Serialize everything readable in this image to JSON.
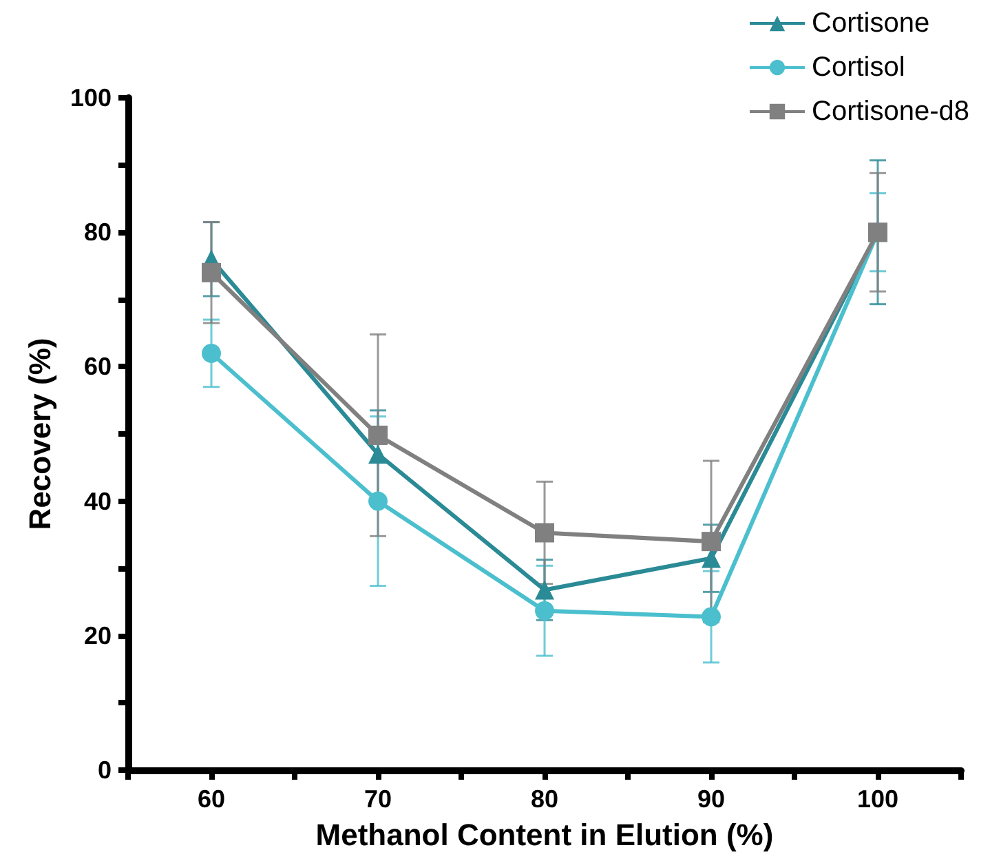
{
  "chart_data": {
    "type": "line",
    "xlabel": "Methanol Content in Elution (%)",
    "ylabel": "Recovery (%)",
    "x": [
      60,
      70,
      80,
      90,
      100
    ],
    "xlim": [
      55,
      105
    ],
    "xticks": [
      {
        "value": 55,
        "label": null
      },
      60,
      {
        "value": 65,
        "label": null
      },
      70,
      {
        "value": 75,
        "label": null
      },
      80,
      {
        "value": 85,
        "label": null
      },
      90,
      {
        "value": 95,
        "label": null
      },
      100,
      {
        "value": 105,
        "label": null
      }
    ],
    "ylim": [
      0,
      100
    ],
    "yticks": [
      0,
      {
        "value": 10,
        "label": null
      },
      20,
      {
        "value": 30,
        "label": null
      },
      40,
      {
        "value": 50,
        "label": null
      },
      60,
      {
        "value": 70,
        "label": null
      },
      80,
      {
        "value": 90,
        "label": null
      },
      100
    ],
    "grid": false,
    "legend": "top right",
    "series": [
      {
        "name": "Cortisone",
        "color": "#2a8a96",
        "marker": "triangle",
        "values": [
          76,
          47,
          26.8,
          31.5,
          80
        ],
        "errors": [
          5.5,
          6.5,
          4.5,
          5,
          10.7
        ]
      },
      {
        "name": "Cortisol",
        "color": "#4bbfce",
        "marker": "circle",
        "values": [
          62,
          40,
          23.7,
          22.8,
          80
        ],
        "errors": [
          5,
          12.6,
          6.7,
          6.8,
          5.8
        ]
      },
      {
        "name": "Cortisone-d8",
        "color": "#808080",
        "marker": "square",
        "values": [
          74,
          49.8,
          35.3,
          34,
          80
        ],
        "errors": [
          7.5,
          15,
          7.6,
          12,
          8.8
        ]
      }
    ]
  }
}
